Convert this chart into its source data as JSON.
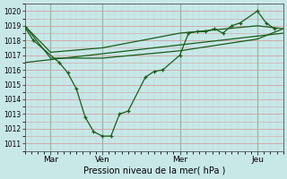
{
  "xlabel": "Pression niveau de la mer( hPa )",
  "bg_color": "#c8e8e8",
  "grid_color_h": "#d4a0a0",
  "grid_color_v": "#b8d8d8",
  "line_color": "#1a5c1a",
  "ylim": [
    1010.5,
    1020.5
  ],
  "yticks": [
    1011,
    1012,
    1013,
    1014,
    1015,
    1016,
    1017,
    1018,
    1019,
    1020
  ],
  "xtick_labels": [
    "Mar",
    "Ven",
    "Mer",
    "Jeu"
  ],
  "xtick_positions": [
    2,
    6,
    12,
    18
  ],
  "xlim": [
    0,
    20
  ],
  "vline_positions": [
    2,
    6,
    12,
    18
  ],
  "series1_x": [
    0,
    0.67,
    2.67,
    3.33,
    4.0,
    4.67,
    5.33,
    6,
    6.67,
    7.33,
    8,
    9.33,
    10,
    10.67,
    12,
    12.67,
    13.33,
    14,
    14.67,
    15.33,
    16,
    16.67,
    18,
    18.67,
    19.33
  ],
  "series1_y": [
    1018.9,
    1018.0,
    1016.5,
    1015.8,
    1014.7,
    1012.8,
    1011.8,
    1011.5,
    1011.5,
    1013.0,
    1013.2,
    1015.5,
    1015.9,
    1016.0,
    1017.0,
    1018.5,
    1018.6,
    1018.6,
    1018.8,
    1018.5,
    1019.0,
    1019.2,
    1020.0,
    1019.2,
    1018.8
  ],
  "series2_x": [
    0,
    2,
    6,
    12,
    18,
    20
  ],
  "series2_y": [
    1019.0,
    1016.8,
    1016.8,
    1017.3,
    1018.1,
    1018.8
  ],
  "series3_x": [
    0,
    2,
    6,
    12,
    18,
    20
  ],
  "series3_y": [
    1019.0,
    1017.2,
    1017.5,
    1018.5,
    1019.0,
    1018.8
  ],
  "series4_x": [
    0,
    20
  ],
  "series4_y": [
    1016.5,
    1018.5
  ]
}
